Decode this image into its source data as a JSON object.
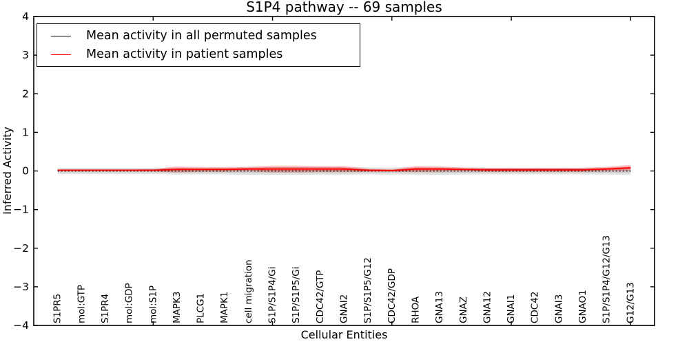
{
  "chart_data": {
    "type": "line",
    "title": "S1P4 pathway -- 69 samples",
    "xlabel": "Cellular Entities",
    "ylabel": "Inferred Activity",
    "ylim": [
      -4,
      4
    ],
    "yticks": [
      4,
      3,
      2,
      1,
      0,
      -1,
      -2,
      -3,
      -4
    ],
    "xlim": [
      0,
      26
    ],
    "xticks_major": [
      5,
      10,
      15,
      20,
      25
    ],
    "grid": false,
    "categories": [
      "S1PR5",
      "mol:GTP",
      "S1PR4",
      "mol:GDP",
      "mol:S1P",
      "MAPK3",
      "PLCG1",
      "MAPK1",
      "cell migration",
      "S1P/S1P4/Gi",
      "S1P/S1P5/Gi",
      "CDC42/GTP",
      "GNAI2",
      "S1P/S1P5/G12",
      "CDC42/GDP",
      "RHOA",
      "GNA13",
      "GNAZ",
      "GNA12",
      "GNAI1",
      "CDC42",
      "GNAI3",
      "GNAO1",
      "S1P/S1P4/G12/G13",
      "G12/G13"
    ],
    "series": [
      {
        "name": "Mean activity in all permuted samples",
        "color": "#000000",
        "line_style": "dotted",
        "values": [
          0,
          0,
          0,
          0,
          0,
          0,
          0,
          0,
          0,
          0,
          0,
          0,
          0,
          0,
          0,
          0,
          0,
          0,
          0,
          0,
          0,
          0,
          0,
          0,
          0
        ],
        "band": [
          0.08,
          0.08,
          0.08,
          0.08,
          0.08,
          0.09,
          0.09,
          0.09,
          0.1,
          0.1,
          0.1,
          0.1,
          0.1,
          0.09,
          0.09,
          0.1,
          0.1,
          0.09,
          0.09,
          0.09,
          0.09,
          0.09,
          0.09,
          0.09,
          0.1
        ]
      },
      {
        "name": "Mean activity in patient samples",
        "color": "#ff0000",
        "line_style": "solid",
        "values": [
          0.02,
          0.02,
          0.02,
          0.02,
          0.02,
          0.04,
          0.04,
          0.04,
          0.05,
          0.05,
          0.05,
          0.05,
          0.05,
          0.02,
          0.01,
          0.05,
          0.05,
          0.04,
          0.03,
          0.03,
          0.03,
          0.03,
          0.03,
          0.05,
          0.08
        ],
        "band": [
          0.02,
          0.02,
          0.02,
          0.02,
          0.03,
          0.08,
          0.06,
          0.06,
          0.06,
          0.09,
          0.09,
          0.08,
          0.08,
          0.04,
          0.03,
          0.08,
          0.07,
          0.05,
          0.05,
          0.05,
          0.05,
          0.05,
          0.05,
          0.06,
          0.08
        ]
      }
    ],
    "legend": {
      "position": "upper left",
      "entries": [
        {
          "label": "Mean activity in all permuted samples",
          "color": "#000000"
        },
        {
          "label": "Mean activity in patient samples",
          "color": "#ff0000"
        }
      ]
    }
  }
}
